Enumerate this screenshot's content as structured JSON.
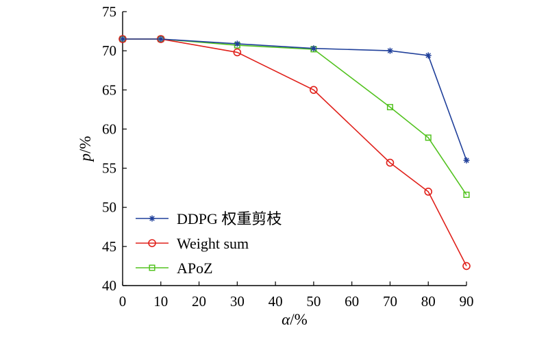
{
  "chart_data": {
    "type": "line",
    "title": "",
    "xlabel": {
      "symbol": "α",
      "unit": "/%"
    },
    "ylabel": {
      "symbol": "p",
      "unit": "/%"
    },
    "x": [
      0,
      10,
      30,
      50,
      70,
      80,
      90
    ],
    "xticks": [
      0,
      10,
      20,
      30,
      40,
      50,
      60,
      70,
      80,
      90
    ],
    "yticks": [
      40,
      45,
      50,
      55,
      60,
      65,
      70,
      75
    ],
    "xlim": [
      0,
      90
    ],
    "ylim": [
      40,
      75
    ],
    "grid": false,
    "legend_position": "bottom-left",
    "series": [
      {
        "name": "DDPG 权重剪枝",
        "color": "#1f3f9a",
        "marker": "asterisk",
        "values": [
          71.5,
          71.5,
          70.9,
          70.3,
          70.0,
          69.4,
          56.0
        ]
      },
      {
        "name": "Weight sum",
        "color": "#e0201a",
        "marker": "circle",
        "values": [
          71.5,
          71.5,
          69.8,
          65.0,
          55.7,
          52.0,
          42.5
        ]
      },
      {
        "name": "APoZ",
        "color": "#52c21f",
        "marker": "square",
        "values": [
          71.5,
          71.5,
          70.7,
          70.2,
          62.8,
          58.9,
          51.6
        ]
      }
    ]
  }
}
